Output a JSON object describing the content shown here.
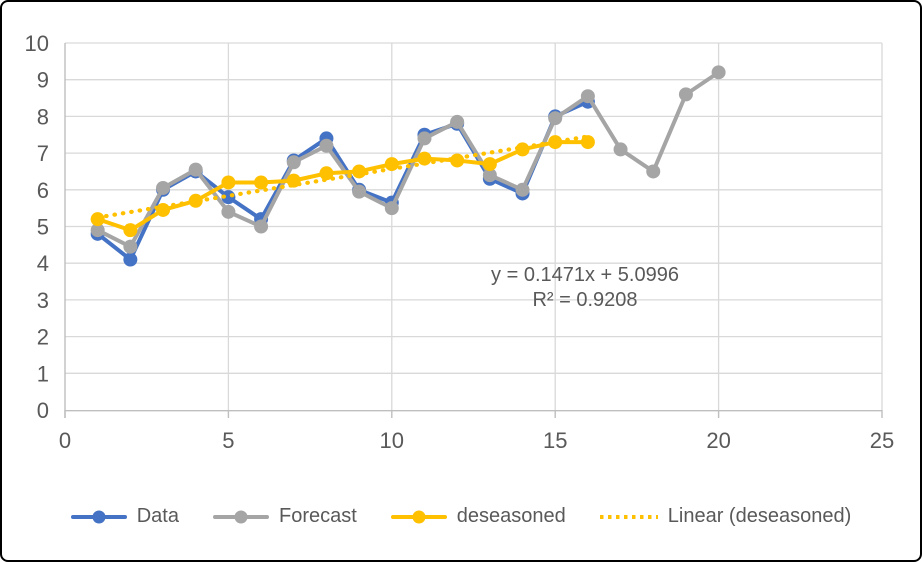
{
  "chart_data": {
    "type": "line",
    "title": "",
    "xlabel": "",
    "ylabel": "",
    "x_axis": {
      "min": 0,
      "max": 25,
      "ticks": [
        0,
        5,
        10,
        15,
        20,
        25
      ]
    },
    "y_axis": {
      "min": 0,
      "max": 10,
      "ticks": [
        0,
        1,
        2,
        3,
        4,
        5,
        6,
        7,
        8,
        9,
        10
      ]
    },
    "grid": true,
    "legend_position": "bottom",
    "colors": {
      "gridline": "#D9D9D9",
      "axis": "#BFBFBF",
      "tick_label": "#595959",
      "annotation_text": "#595959",
      "legend_text": "#595959"
    },
    "series": [
      {
        "name": "Data",
        "color": "#4472C4",
        "marker": "circle",
        "x": [
          1,
          2,
          3,
          4,
          5,
          6,
          7,
          8,
          9,
          10,
          11,
          12,
          13,
          14,
          15,
          16
        ],
        "values": [
          4.8,
          4.1,
          6.0,
          6.5,
          5.8,
          5.2,
          6.8,
          7.4,
          6.0,
          5.65,
          7.5,
          7.8,
          6.3,
          5.9,
          8.0,
          8.4
        ]
      },
      {
        "name": "Forecast",
        "color": "#A5A5A5",
        "marker": "circle",
        "x": [
          1,
          2,
          3,
          4,
          5,
          6,
          7,
          8,
          9,
          10,
          11,
          12,
          13,
          14,
          15,
          16,
          17,
          18,
          19,
          20
        ],
        "values": [
          4.9,
          4.45,
          6.05,
          6.55,
          5.4,
          5.0,
          6.75,
          7.2,
          5.95,
          5.5,
          7.4,
          7.85,
          6.4,
          6.0,
          7.95,
          8.55,
          7.1,
          6.5,
          8.6,
          9.2
        ]
      },
      {
        "name": "deseasoned",
        "color": "#FFC000",
        "marker": "circle",
        "x": [
          1,
          2,
          3,
          4,
          5,
          6,
          7,
          8,
          9,
          10,
          11,
          12,
          13,
          14,
          15,
          16
        ],
        "values": [
          5.2,
          4.9,
          5.45,
          5.7,
          6.2,
          6.2,
          6.25,
          6.45,
          6.5,
          6.7,
          6.85,
          6.8,
          6.7,
          7.1,
          7.3,
          7.3
        ]
      }
    ],
    "trendline": {
      "name": "Linear (deseasoned)",
      "color": "#FFC000",
      "style": "dotted",
      "slope": 0.1471,
      "intercept": 5.0996,
      "x_start": 1,
      "x_end": 16
    },
    "annotation": {
      "line1": "y = 0.1471x + 5.0996",
      "line2": "R² = 0.9208"
    }
  }
}
